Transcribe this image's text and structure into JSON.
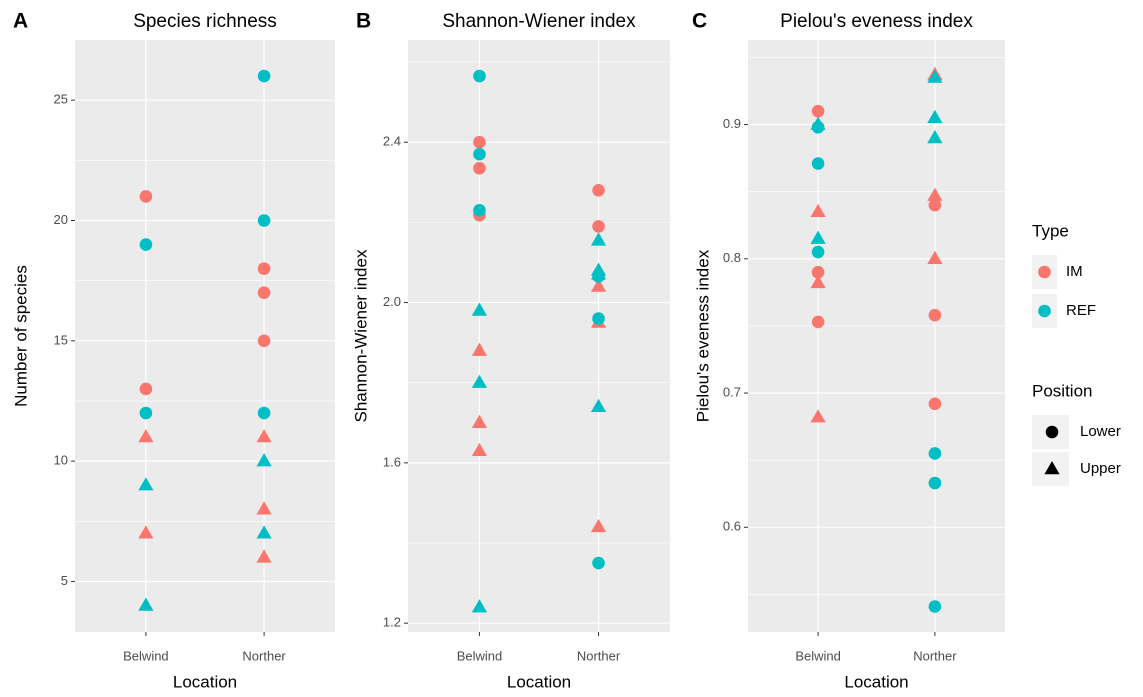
{
  "chart_data": [
    {
      "type": "scatter",
      "tag": "A",
      "title": "Species richness",
      "xlabel": "Location",
      "ylabel": "Number of species",
      "categories": [
        "Belwind",
        "Norther"
      ],
      "ylim": [
        2.9,
        27.5
      ],
      "yticks": [
        5,
        10,
        15,
        20,
        25
      ],
      "grid": true,
      "series": [
        {
          "Type": "IM",
          "Position": "Lower",
          "x": [
            "Belwind",
            "Belwind",
            "Norther",
            "Norther",
            "Norther"
          ],
          "values": [
            21,
            13,
            18,
            17,
            15
          ]
        },
        {
          "Type": "IM",
          "Position": "Upper",
          "x": [
            "Belwind",
            "Belwind",
            "Norther",
            "Norther",
            "Norther"
          ],
          "values": [
            11,
            7,
            11,
            8,
            6
          ]
        },
        {
          "Type": "REF",
          "Position": "Lower",
          "x": [
            "Belwind",
            "Belwind",
            "Norther",
            "Norther",
            "Norther"
          ],
          "values": [
            19,
            12,
            26,
            20,
            12
          ]
        },
        {
          "Type": "REF",
          "Position": "Upper",
          "x": [
            "Belwind",
            "Belwind",
            "Norther",
            "Norther"
          ],
          "values": [
            9,
            4,
            10,
            7
          ]
        }
      ]
    },
    {
      "type": "scatter",
      "tag": "B",
      "title": "Shannon-Wiener index",
      "xlabel": "Location",
      "ylabel": "Shannon-Wiener index",
      "categories": [
        "Belwind",
        "Norther"
      ],
      "ylim": [
        1.178,
        2.655
      ],
      "yticks": [
        {
          "value": 1.2,
          "label": "1.2"
        },
        {
          "value": 1.6,
          "label": "1.6"
        },
        {
          "value": 2,
          "label": "2.0"
        },
        {
          "value": 2.4,
          "label": "2.4"
        }
      ],
      "grid": true,
      "series": [
        {
          "Type": "IM",
          "Position": "Lower",
          "x": [
            "Belwind",
            "Belwind",
            "Belwind",
            "Norther",
            "Norther"
          ],
          "values": [
            2.4,
            2.335,
            2.218,
            2.28,
            2.19
          ]
        },
        {
          "Type": "IM",
          "Position": "Upper",
          "x": [
            "Belwind",
            "Belwind",
            "Belwind",
            "Norther",
            "Norther",
            "Norther"
          ],
          "values": [
            1.88,
            1.7,
            1.63,
            2.04,
            1.95,
            1.44
          ]
        },
        {
          "Type": "REF",
          "Position": "Lower",
          "x": [
            "Belwind",
            "Belwind",
            "Belwind",
            "Norther",
            "Norther",
            "Norther"
          ],
          "values": [
            2.565,
            2.37,
            2.23,
            2.065,
            1.96,
            1.35
          ]
        },
        {
          "Type": "REF",
          "Position": "Upper",
          "x": [
            "Belwind",
            "Belwind",
            "Belwind",
            "Norther",
            "Norther",
            "Norther",
            "Norther"
          ],
          "values": [
            1.98,
            1.8,
            1.24,
            2.155,
            2.08,
            2.07,
            1.74
          ]
        }
      ]
    },
    {
      "type": "scatter",
      "tag": "C",
      "title": "Pielou's eveness index",
      "xlabel": "Location",
      "ylabel": "Pielou's eveness index",
      "categories": [
        "Belwind",
        "Norther"
      ],
      "ylim": [
        0.522,
        0.963
      ],
      "yticks": [
        0.6,
        0.7,
        0.8,
        0.9
      ],
      "grid": true,
      "series": [
        {
          "Type": "IM",
          "Position": "Lower",
          "x": [
            "Belwind",
            "Belwind",
            "Belwind",
            "Norther",
            "Norther",
            "Norther"
          ],
          "values": [
            0.91,
            0.79,
            0.753,
            0.84,
            0.758,
            0.692
          ]
        },
        {
          "Type": "IM",
          "Position": "Upper",
          "x": [
            "Belwind",
            "Belwind",
            "Belwind",
            "Norther",
            "Norther",
            "Norther"
          ],
          "values": [
            0.835,
            0.782,
            0.682,
            0.937,
            0.847,
            0.8
          ]
        },
        {
          "Type": "REF",
          "Position": "Lower",
          "x": [
            "Belwind",
            "Belwind",
            "Belwind",
            "Norther",
            "Norther",
            "Norther"
          ],
          "values": [
            0.898,
            0.871,
            0.805,
            0.655,
            0.633,
            0.541
          ]
        },
        {
          "Type": "REF",
          "Position": "Upper",
          "x": [
            "Belwind",
            "Belwind",
            "Norther",
            "Norther",
            "Norther"
          ],
          "values": [
            0.9,
            0.815,
            0.935,
            0.905,
            0.89
          ]
        }
      ]
    }
  ],
  "legend": {
    "type_title": "Type",
    "types": [
      {
        "name": "IM",
        "color": "#f8766d"
      },
      {
        "name": "REF",
        "color": "#00bfc4"
      }
    ],
    "position_title": "Position",
    "positions": [
      {
        "name": "Lower",
        "shape": "circle"
      },
      {
        "name": "Upper",
        "shape": "triangle"
      }
    ]
  }
}
